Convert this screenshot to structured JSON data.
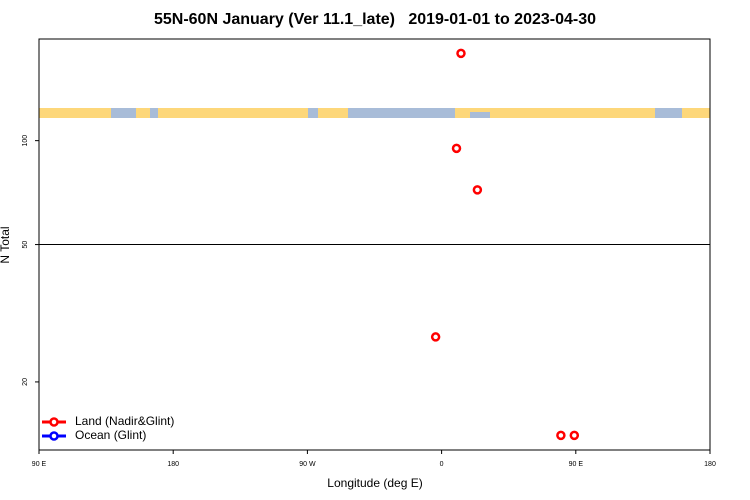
{
  "chart_data": {
    "type": "scatter",
    "title": "55N-60N January (Ver 11.1_late)   2019-01-01 to 2023-04-30",
    "xlabel": "Longitude (deg E)",
    "ylabel": "N Total",
    "xlim": [
      90,
      540
    ],
    "xticks": [
      {
        "value": 90,
        "label": "90 E"
      },
      180,
      {
        "value": 270,
        "label": "90 W"
      },
      {
        "value": 360,
        "label": "0"
      },
      {
        "value": 450,
        "label": "90 E"
      },
      {
        "value": 540,
        "label": "180"
      }
    ],
    "ylim": [
      12.7,
      197
    ],
    "yticks": [
      20,
      50,
      100
    ],
    "log_y": true,
    "reference_line": 50,
    "legend": "lower left",
    "series": [
      {
        "name": "Land (Nadir&Glint)",
        "color": "#ff0000",
        "x": [
          373,
          370,
          384,
          356,
          440,
          449
        ],
        "values": [
          179,
          95,
          72,
          27,
          14,
          14
        ]
      },
      {
        "name": "Ocean (Glint)",
        "color": "#0000ff",
        "x": [],
        "values": []
      }
    ]
  }
}
